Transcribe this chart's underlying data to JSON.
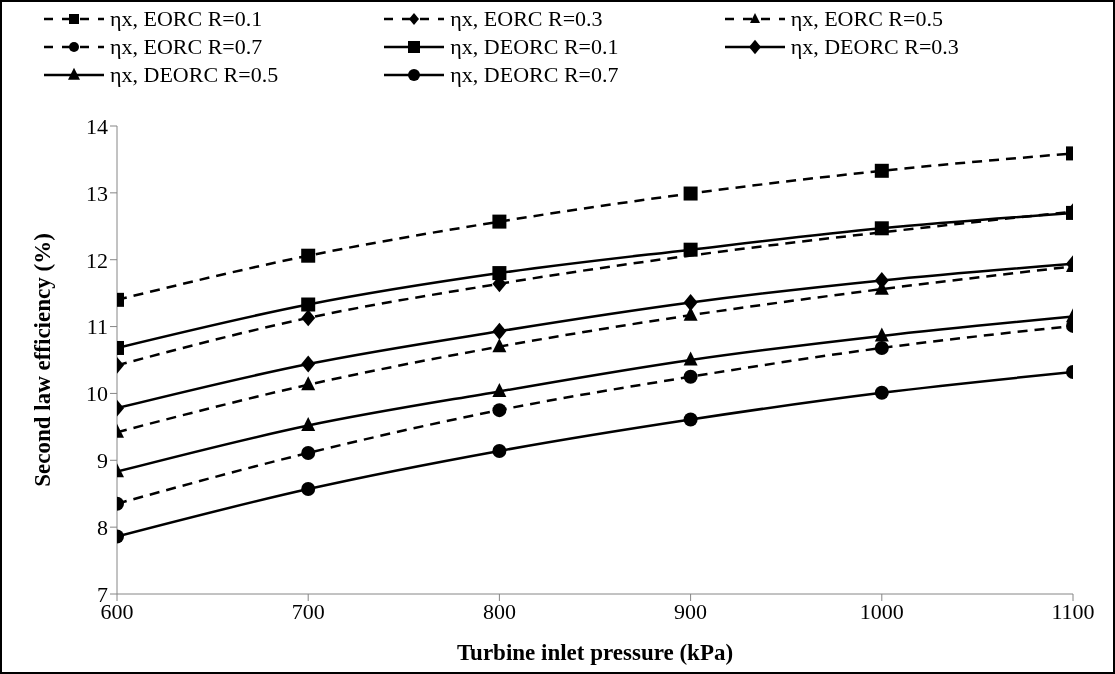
{
  "chart_data": {
    "type": "line",
    "xlabel": "Turbine  inlet pressure (kPa)",
    "ylabel": "Second law efficiency (%)",
    "x": [
      600,
      700,
      800,
      900,
      1000,
      1100
    ],
    "xlim": [
      600,
      1100
    ],
    "xticks": [
      600,
      700,
      800,
      900,
      1000,
      1100
    ],
    "ylim": [
      7,
      14
    ],
    "yticks": [
      7,
      8,
      9,
      10,
      11,
      12,
      13,
      14
    ],
    "legend": "top",
    "series": [
      {
        "name": "ηx, EORC R=0.1",
        "color": "#000000",
        "marker": "square",
        "line_style": "dashed",
        "values": [
          11.4,
          12.06,
          12.57,
          12.99,
          13.33,
          13.59
        ]
      },
      {
        "name": "ηx, EORC R=0.3",
        "color": "#000000",
        "marker": "diamond",
        "line_style": "dashed",
        "values": [
          10.42,
          11.13,
          11.64,
          null,
          null,
          12.72
        ]
      },
      {
        "name": "ηx, EORC R=0.5",
        "color": "#000000",
        "marker": "triangle",
        "line_style": "dashed",
        "values": [
          9.42,
          10.13,
          10.7,
          11.17,
          11.56,
          11.9
        ]
      },
      {
        "name": "ηx, EORC R=0.7",
        "color": "#000000",
        "marker": "circle",
        "line_style": "dashed",
        "values": [
          8.35,
          9.11,
          9.75,
          10.25,
          10.68,
          11.01
        ]
      },
      {
        "name": "ηx, DEORC R=0.1",
        "color": "#000000",
        "marker": "square",
        "line_style": "solid",
        "values": [
          10.68,
          11.33,
          11.8,
          12.15,
          12.47,
          12.7
        ]
      },
      {
        "name": "ηx, DEORC R=0.3",
        "color": "#000000",
        "marker": "diamond",
        "line_style": "solid",
        "values": [
          9.78,
          10.44,
          10.93,
          11.36,
          11.69,
          11.94
        ]
      },
      {
        "name": "ηx, DEORC R=0.5",
        "color": "#000000",
        "marker": "triangle",
        "line_style": "solid",
        "values": [
          8.83,
          9.52,
          10.03,
          10.5,
          10.86,
          11.15
        ]
      },
      {
        "name": "ηx, DEORC R=0.7",
        "color": "#000000",
        "marker": "circle",
        "line_style": "solid",
        "values": [
          7.86,
          8.57,
          9.14,
          9.61,
          10.01,
          10.32
        ]
      }
    ]
  }
}
